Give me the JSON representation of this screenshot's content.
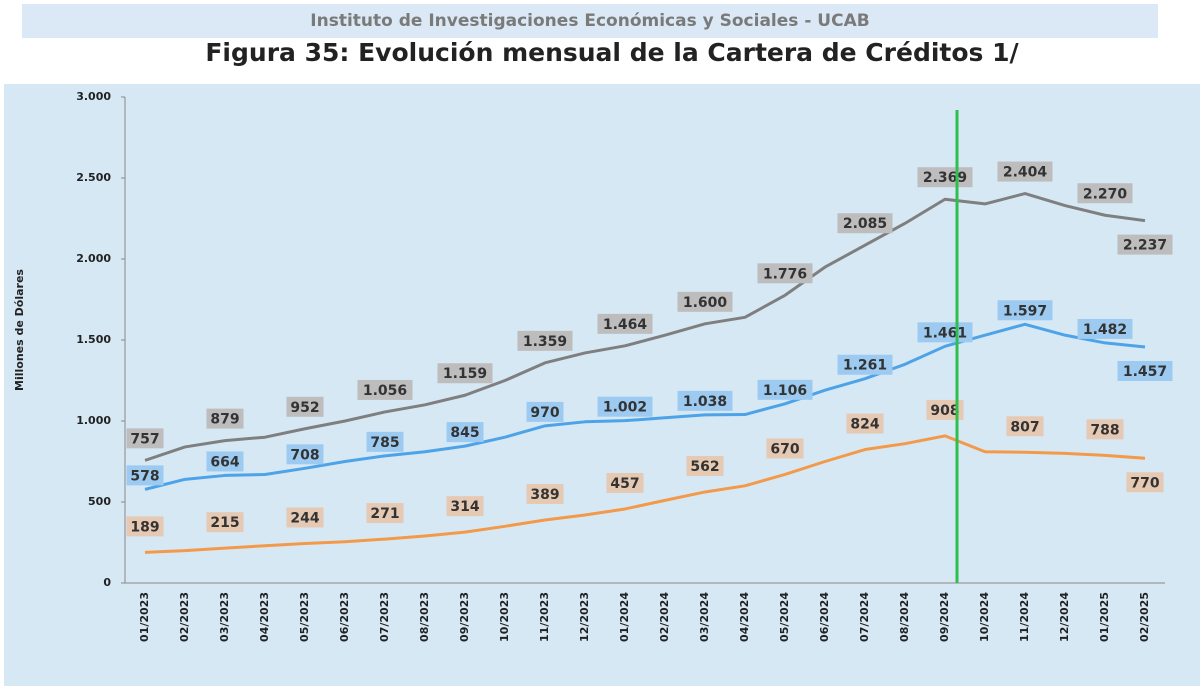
{
  "header": "Instituto de Investigaciones Económicas y Sociales - UCAB",
  "chart_data": {
    "type": "line",
    "title": "Figura 35: Evolución mensual de la Cartera de Créditos 1/",
    "y_label": "Millones de Dólares",
    "categories": [
      "01/2023",
      "02/2023",
      "03/2023",
      "04/2023",
      "05/2023",
      "06/2023",
      "07/2023",
      "08/2023",
      "09/2023",
      "10/2023",
      "11/2023",
      "12/2023",
      "01/2024",
      "02/2024",
      "03/2024",
      "04/2024",
      "05/2024",
      "06/2024",
      "07/2024",
      "08/2024",
      "09/2024",
      "10/2024",
      "11/2024",
      "12/2024",
      "01/2025",
      "02/2025"
    ],
    "ylim": [
      0,
      3000
    ],
    "yticks": [
      0,
      500,
      {
        "value": 1000,
        "label": "1.000"
      },
      {
        "value": 1500,
        "label": "1.500"
      },
      {
        "value": 2000,
        "label": "2.000"
      },
      {
        "value": 2500,
        "label": "2.500"
      },
      {
        "value": 3000,
        "label": "3.000"
      }
    ],
    "series": [
      {
        "color": "#7f7f7f",
        "label_fill": "#bdbdbd",
        "values": [
          757,
          840,
          879,
          900,
          952,
          1000,
          1056,
          1100,
          1159,
          1250,
          1359,
          1420,
          1464,
          1530,
          1600,
          1640,
          1776,
          1950,
          2085,
          2220,
          2369,
          2340,
          2404,
          2330,
          2270,
          2237
        ],
        "value_labels": [
          "757",
          null,
          "879",
          null,
          "952",
          null,
          "1.056",
          null,
          "1.159",
          null,
          "1.359",
          null,
          "1.464",
          null,
          "1.600",
          null,
          "1.776",
          null,
          "2.085",
          null,
          "2.369",
          null,
          "2.404",
          null,
          "2.270",
          "2.237"
        ]
      },
      {
        "color": "#4da3e8",
        "label_fill": "#9ccaf0",
        "values": [
          578,
          640,
          664,
          670,
          708,
          750,
          785,
          810,
          845,
          900,
          970,
          995,
          1002,
          1020,
          1038,
          1040,
          1106,
          1190,
          1261,
          1350,
          1461,
          1530,
          1597,
          1530,
          1482,
          1457
        ],
        "value_labels": [
          "578",
          null,
          "664",
          null,
          "708",
          null,
          "785",
          null,
          "845",
          null,
          "970",
          null,
          "1.002",
          null,
          "1.038",
          null,
          "1.106",
          null,
          "1.261",
          null,
          "1.461",
          null,
          "1.597",
          null,
          "1.482",
          "1.457"
        ]
      },
      {
        "color": "#f39a4a",
        "label_fill": "#e6c9b3",
        "values": [
          189,
          200,
          215,
          230,
          244,
          255,
          271,
          290,
          314,
          350,
          389,
          420,
          457,
          510,
          562,
          600,
          670,
          750,
          824,
          860,
          908,
          810,
          807,
          800,
          788,
          770
        ],
        "value_labels": [
          "189",
          null,
          "215",
          null,
          "244",
          null,
          "271",
          null,
          "314",
          null,
          "389",
          null,
          "457",
          null,
          "562",
          null,
          "670",
          null,
          "824",
          null,
          "908",
          null,
          "807",
          null,
          "788",
          "770"
        ]
      }
    ]
  }
}
